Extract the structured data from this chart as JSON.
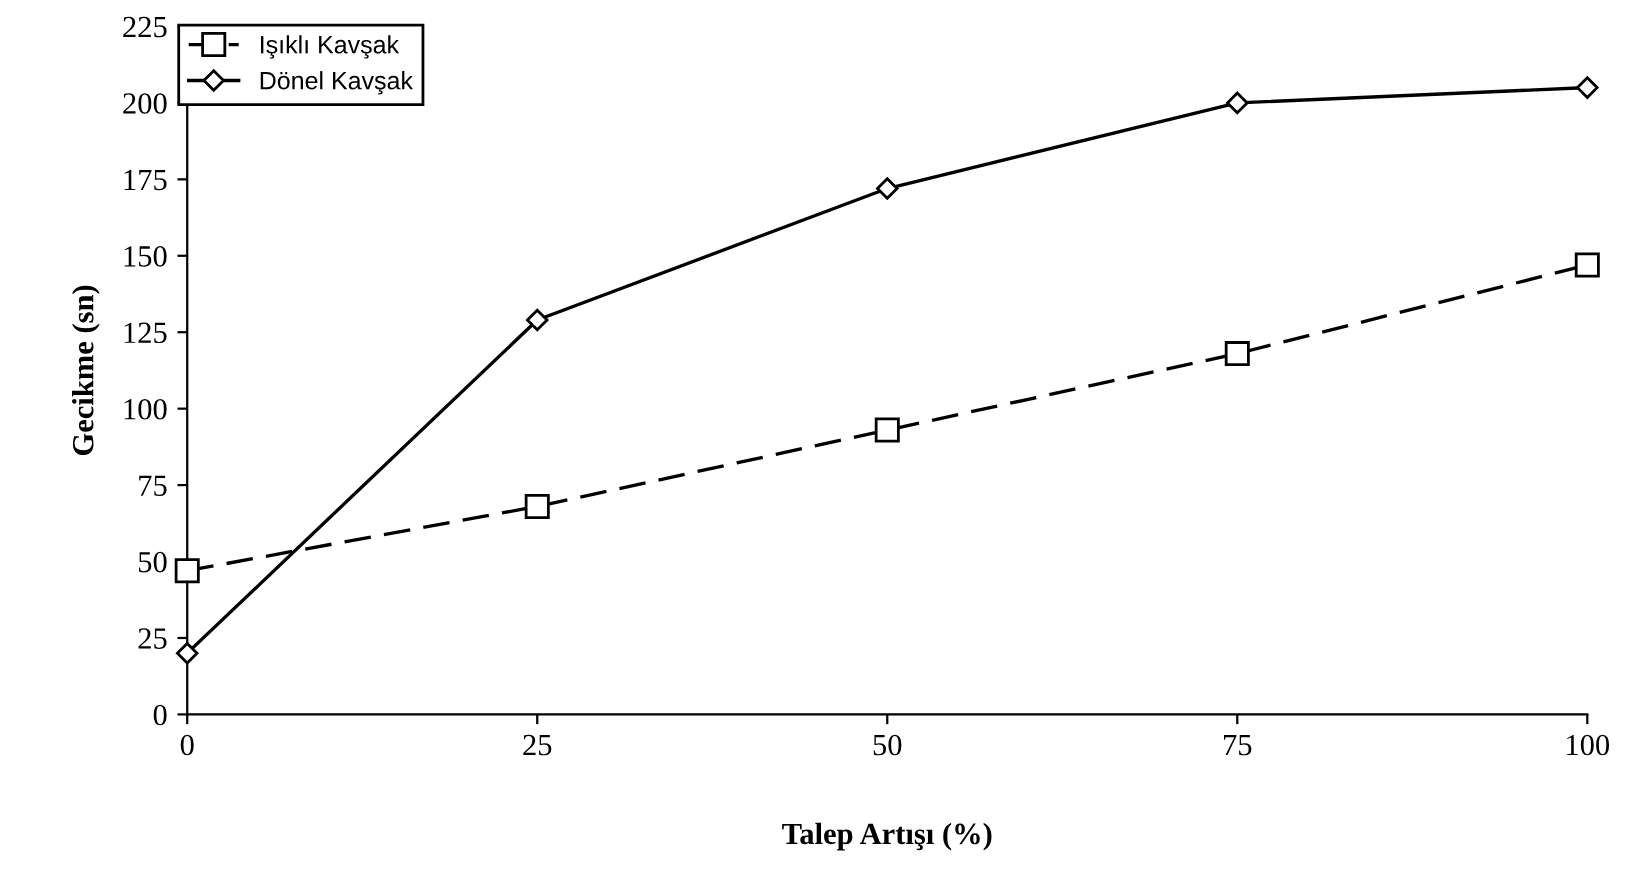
{
  "chart_data": {
    "type": "line",
    "xlabel": "Talep Artışı (%)",
    "ylabel": "Gecikme (sn)",
    "x": [
      0,
      25,
      50,
      75,
      100
    ],
    "series": [
      {
        "name": "Işıklı Kavşak",
        "color": "#000000",
        "values": [
          47,
          68,
          93,
          118,
          147
        ],
        "marker": "square",
        "line_style": "dashed"
      },
      {
        "name": "Dönel Kavşak",
        "color": "#000000",
        "values": [
          20,
          129,
          172,
          200,
          205
        ],
        "marker": "diamond",
        "line_style": "solid"
      }
    ],
    "xlim": [
      0,
      100
    ],
    "xticks": [
      0,
      25,
      50,
      75,
      100
    ],
    "ylim": [
      0,
      225
    ],
    "yticks": [
      0,
      25,
      50,
      75,
      100,
      125,
      150,
      175,
      200,
      225
    ],
    "grid": false,
    "legend": "top left"
  }
}
